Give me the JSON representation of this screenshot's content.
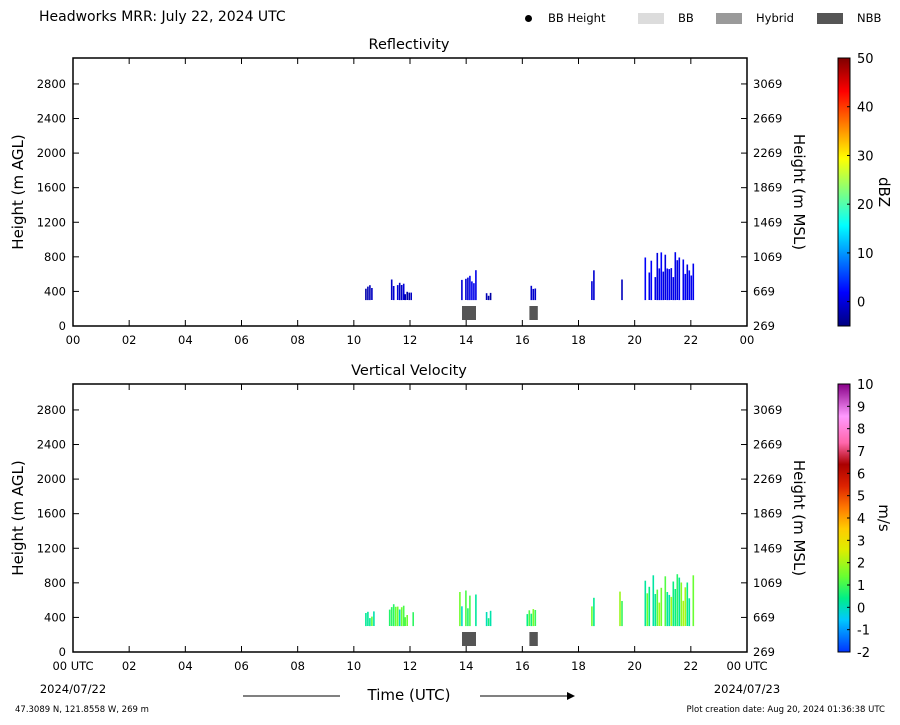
{
  "header": {
    "title": "Headworks MRR:  July 22, 2024 UTC",
    "legend": [
      {
        "label": "BB Height",
        "color": "#000000",
        "kind": "dot"
      },
      {
        "label": "BB",
        "color": "#dcdcdc",
        "kind": "swatch"
      },
      {
        "label": "Hybrid",
        "color": "#9a9a9a",
        "kind": "swatch"
      },
      {
        "label": "NBB",
        "color": "#555555",
        "kind": "swatch"
      }
    ]
  },
  "footer": {
    "location": "47.3089 N, 121.8558 W, 269 m",
    "creation": "Plot creation date: Aug 20, 2024 01:36:38 UTC",
    "start_date": "2024/07/22",
    "end_date": "2024/07/23",
    "time_label": "Time (UTC)"
  },
  "chart_data": [
    {
      "type": "heatmap",
      "title": "Reflectivity",
      "ylabel": "Height (m AGL)",
      "y2label": "Height (m MSL)",
      "xlim": [
        0,
        24
      ],
      "ylim": [
        0,
        3100
      ],
      "yticks": [
        0,
        400,
        800,
        1200,
        1600,
        2000,
        2400,
        2800
      ],
      "y2ticks": [
        "269",
        "669",
        "1069",
        "1469",
        "1869",
        "2269",
        "2669",
        "3069"
      ],
      "xticks": [
        "00",
        "02",
        "04",
        "06",
        "08",
        "10",
        "12",
        "14",
        "16",
        "18",
        "20",
        "22",
        "00"
      ],
      "colorbar": {
        "label": "dBZ",
        "range": [
          -5,
          50
        ],
        "ticks": [
          0,
          10,
          20,
          30,
          40,
          50
        ],
        "colormap": "jet"
      },
      "echoes": [
        {
          "start": 10.4,
          "end": 10.75,
          "base": 300,
          "top": 480,
          "value": -2
        },
        {
          "start": 11.25,
          "end": 11.75,
          "base": 300,
          "top": 590,
          "value": -1
        },
        {
          "start": 11.8,
          "end": 12.1,
          "base": 300,
          "top": 440,
          "value": -2
        },
        {
          "start": 13.75,
          "end": 14.35,
          "base": 300,
          "top": 700,
          "value": 0
        },
        {
          "start": 14.7,
          "end": 14.85,
          "base": 300,
          "top": 400,
          "value": -3
        },
        {
          "start": 16.15,
          "end": 16.5,
          "base": 300,
          "top": 490,
          "value": -1
        },
        {
          "start": 18.45,
          "end": 18.55,
          "base": 300,
          "top": 700,
          "value": 0
        },
        {
          "start": 19.45,
          "end": 19.55,
          "base": 300,
          "top": 660,
          "value": -1
        },
        {
          "start": 20.35,
          "end": 22.1,
          "base": 300,
          "top": 880,
          "value": 1
        }
      ],
      "nbb": [
        {
          "start": 13.85,
          "end": 14.35
        },
        {
          "start": 16.25,
          "end": 16.55
        }
      ]
    },
    {
      "type": "heatmap",
      "title": "Vertical Velocity",
      "ylabel": "Height (m AGL)",
      "y2label": "Height (m MSL)",
      "xlim": [
        0,
        24
      ],
      "ylim": [
        0,
        3100
      ],
      "yticks": [
        0,
        400,
        800,
        1200,
        1600,
        2000,
        2400,
        2800
      ],
      "y2ticks": [
        "269",
        "669",
        "1069",
        "1469",
        "1869",
        "2269",
        "2669",
        "3069"
      ],
      "xticks": [
        "00 UTC",
        "02",
        "04",
        "06",
        "08",
        "10",
        "12",
        "14",
        "16",
        "18",
        "20",
        "22",
        "00 UTC"
      ],
      "colorbar": {
        "label": "m/s",
        "range": [
          -2,
          10
        ],
        "ticks": [
          -2,
          -1,
          0,
          1,
          2,
          3,
          4,
          5,
          6,
          7,
          8,
          9,
          10
        ],
        "colormap": "velocity"
      },
      "echoes": [
        {
          "start": 10.4,
          "end": 10.75,
          "base": 300,
          "top": 500,
          "value": 0.6
        },
        {
          "start": 11.25,
          "end": 11.75,
          "base": 300,
          "top": 600,
          "value": 0.6
        },
        {
          "start": 11.8,
          "end": 12.1,
          "base": 300,
          "top": 500,
          "value": 0.6
        },
        {
          "start": 13.75,
          "end": 14.35,
          "base": 300,
          "top": 720,
          "value": 0.5
        },
        {
          "start": 14.7,
          "end": 14.85,
          "base": 300,
          "top": 500,
          "value": 0.6
        },
        {
          "start": 16.15,
          "end": 16.5,
          "base": 300,
          "top": 500,
          "value": 0.6
        },
        {
          "start": 18.45,
          "end": 18.55,
          "base": 300,
          "top": 700,
          "value": 1.2
        },
        {
          "start": 19.45,
          "end": 19.55,
          "base": 300,
          "top": 700,
          "value": 1.2
        },
        {
          "start": 20.35,
          "end": 22.1,
          "base": 300,
          "top": 900,
          "value": 1.1
        }
      ],
      "nbb": [
        {
          "start": 13.85,
          "end": 14.35
        },
        {
          "start": 16.25,
          "end": 16.55
        }
      ]
    }
  ]
}
